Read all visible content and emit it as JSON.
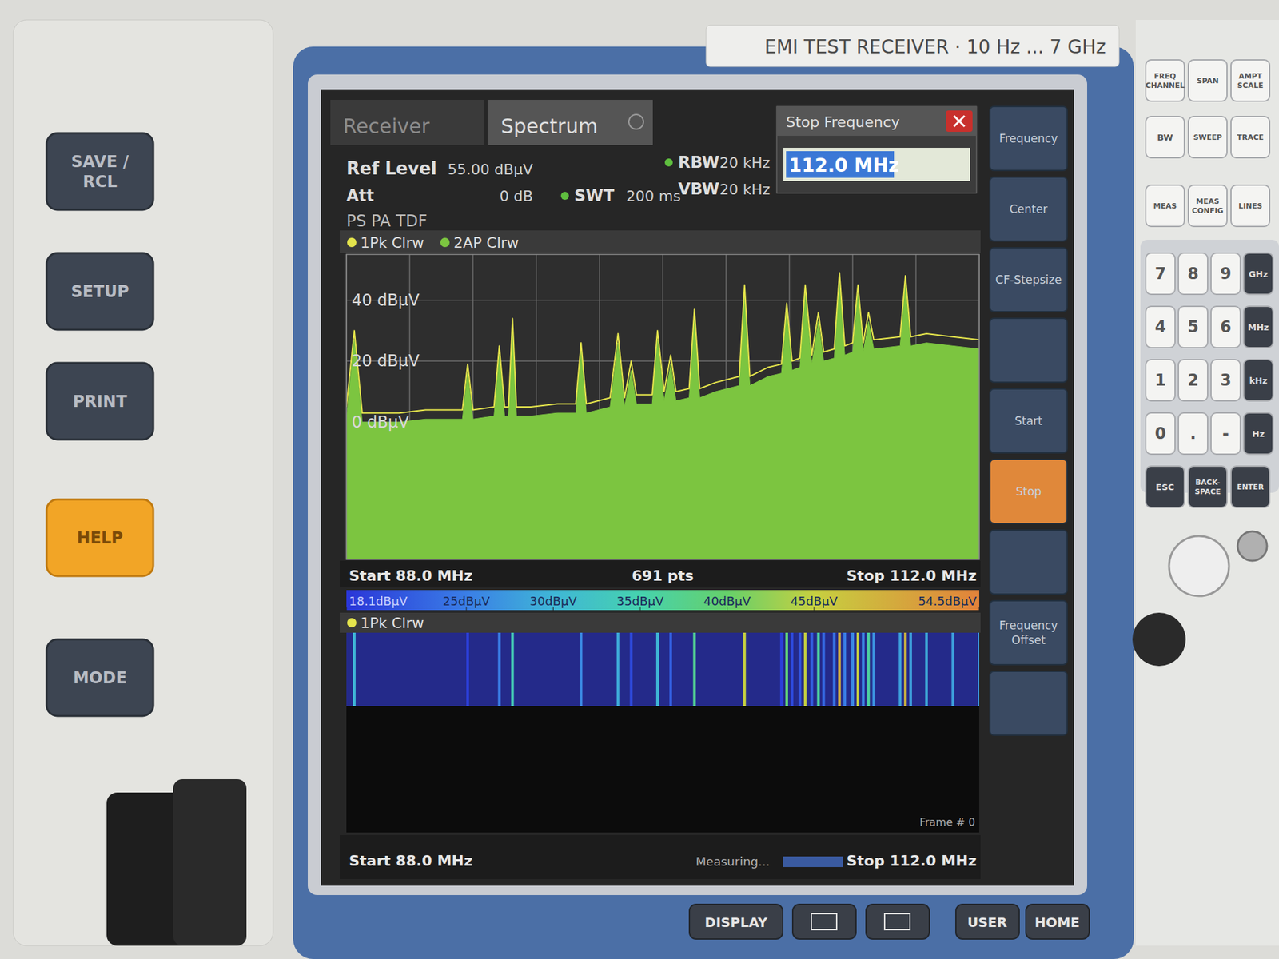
{
  "chart_data": {
    "type": "line",
    "x": [
      88,
      88.3,
      88.6,
      89,
      90,
      91,
      92,
      92.4,
      92.6,
      92.8,
      93.6,
      93.8,
      94.0,
      94.15,
      94.3,
      94.45,
      95,
      96,
      96.7,
      96.9,
      97.1,
      98,
      98.3,
      98.55,
      98.8,
      99.0,
      99.6,
      99.8,
      100.05,
      100.3,
      100.5,
      101.0,
      101.2,
      101.4,
      102,
      102.9,
      103.1,
      103.3,
      104,
      104.5,
      104.7,
      104.9,
      105.2,
      105.4,
      105.65,
      105.9,
      106.1,
      106.5,
      106.7,
      106.9,
      107.2,
      107.4,
      107.6,
      107.8,
      108.0,
      109.0,
      109.2,
      109.4,
      110,
      111,
      112
    ],
    "series": [
      {
        "name": "1Pk Clrw",
        "color": "#e4e44c",
        "type": "line",
        "values": [
          5,
          30,
          3,
          3,
          3,
          4,
          4,
          4,
          19,
          4,
          5,
          25,
          5,
          5,
          34,
          5,
          5,
          6,
          6,
          26,
          6,
          8,
          29,
          8,
          20,
          9,
          9,
          30,
          10,
          22,
          10,
          11,
          37,
          11,
          13,
          15,
          45,
          15,
          18,
          19,
          39,
          20,
          21,
          45,
          22,
          36,
          23,
          24,
          49,
          25,
          26,
          45,
          26,
          36,
          27,
          28,
          48,
          28,
          29,
          28,
          27
        ]
      },
      {
        "name": "2AP Clrw",
        "color": "#7cc540",
        "type": "area",
        "values": [
          1,
          27,
          0,
          0,
          0,
          1,
          1,
          1,
          16,
          1,
          2,
          22,
          2,
          2,
          31,
          2,
          2,
          3,
          3,
          23,
          3,
          5,
          26,
          5,
          17,
          6,
          6,
          27,
          7,
          19,
          7,
          8,
          34,
          8,
          10,
          12,
          42,
          12,
          15,
          16,
          36,
          17,
          18,
          42,
          19,
          33,
          20,
          21,
          46,
          22,
          23,
          42,
          23,
          33,
          24,
          25,
          45,
          25,
          26,
          25,
          24
        ]
      }
    ],
    "xlim": [
      88,
      112
    ],
    "ylim": [
      -45,
      55
    ],
    "xticks": [
      88,
      90.4,
      92.8,
      95.2,
      97.6,
      100,
      102.4,
      104.8,
      107.2,
      109.6,
      112
    ],
    "yticks": [
      {
        "value": 40,
        "label": "40 dBµV"
      },
      {
        "value": 20,
        "label": "20 dBµV"
      },
      {
        "value": 0,
        "label": "0 dBµV"
      }
    ],
    "grid": true,
    "tick_labels": "y",
    "legend": "top",
    "annotations": [
      "Start 88.0 MHz",
      "691 pts",
      "Stop 112.0 MHz"
    ],
    "colorbar": {
      "range": [
        18.1,
        54.5
      ],
      "ticks": [
        {
          "value": 18.1,
          "label": "18.1dBµV"
        },
        {
          "value": 25,
          "label": "25dBµV"
        },
        {
          "value": 30,
          "label": "30dBµV"
        },
        {
          "value": 35,
          "label": "35dBµV"
        },
        {
          "value": 40,
          "label": "40dBµV"
        },
        {
          "value": 45,
          "label": "45dBµV"
        },
        {
          "value": 54.5,
          "label": "54.5dBµV"
        }
      ]
    }
  },
  "screen": {
    "tabs": [
      "Receiver",
      "Spectrum"
    ],
    "params": [
      {
        "label": "Ref Level",
        "value": "55.00 dBµV"
      },
      {
        "label": "Att",
        "value": "0 dB"
      },
      {
        "label": "SWT",
        "value": "200 ms"
      },
      {
        "label": "RBW",
        "value": "20 kHz"
      },
      {
        "label": "VBW",
        "value": "20 kHz"
      }
    ],
    "mode_flags": "PS PA TDF",
    "dialog": {
      "title": "Stop Frequency",
      "value": "112.0 MHz"
    },
    "softkeys": [
      "Frequency",
      "Center",
      "CF-Stepsize",
      "Start",
      "Stop",
      "Frequency Offset"
    ],
    "waterfall": {
      "trace": "1Pk Clrw",
      "frame": "Frame # 0",
      "start": "Start 88.0 MHz",
      "stop": "Stop 112.0 MHz"
    },
    "status": "Measuring..."
  },
  "device": {
    "brand": "EMI TEST RECEIVER · 10 Hz ... 7 GHz",
    "left_buttons": [
      [
        "SAVE /",
        "RCL"
      ],
      [
        "SETUP"
      ],
      [
        "PRINT"
      ],
      [
        "HELP"
      ],
      [
        "MODE"
      ]
    ],
    "keys": [
      [
        "FREQ",
        "CHANNEL"
      ],
      [
        "SPAN"
      ],
      [
        "AMPT",
        "SCALE"
      ],
      [
        "BW"
      ],
      [
        "SWEEP"
      ],
      [
        "TRACE"
      ],
      [
        "MEAS"
      ],
      [
        "MEAS",
        "CONFIG"
      ],
      [
        "LINES"
      ],
      [
        "7"
      ],
      [
        "8"
      ],
      [
        "9"
      ],
      [
        "GHz"
      ],
      [
        "4"
      ],
      [
        "5"
      ],
      [
        "6"
      ],
      [
        "MHz"
      ],
      [
        "1"
      ],
      [
        "2"
      ],
      [
        "3"
      ],
      [
        "kHz"
      ],
      [
        "0"
      ],
      [
        "."
      ],
      [
        "-"
      ],
      [
        "Hz"
      ],
      [
        "ESC"
      ],
      [
        "BACK-",
        "SPACE"
      ],
      [
        "ENTER"
      ]
    ],
    "bottom_buttons": [
      "DISPLAY",
      "USER",
      "HOME"
    ]
  }
}
